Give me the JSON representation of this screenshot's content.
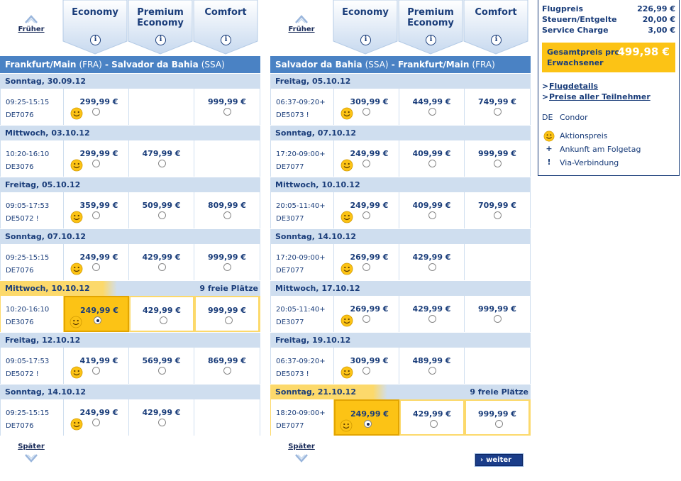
{
  "colors": {
    "accent": "#4a82c4",
    "highlight": "#fcc315",
    "day_bg": "#cfdeef",
    "text": "#1a3d7a",
    "button": "#1a3d8a"
  },
  "nav": {
    "earlier": "Früher",
    "later": "Später"
  },
  "fares": [
    {
      "label": "Economy",
      "info": "i"
    },
    {
      "label": "Premium Economy",
      "info": "i"
    },
    {
      "label": "Comfort",
      "info": "i"
    }
  ],
  "outbound": {
    "route": {
      "from": "Frankfurt/Main",
      "from_code": "(FRA)",
      "sep": " - ",
      "to": "Salvador da Bahia",
      "to_code": "(SSA)"
    },
    "days": [
      {
        "date": "Sonntag, 30.09.12",
        "seats": "",
        "selected": false,
        "times": "09:25-15:15",
        "flight": "DE7076",
        "prices": [
          "299,99 €",
          "",
          "999,99 €"
        ],
        "smiley": true
      },
      {
        "date": "Mittwoch, 03.10.12",
        "seats": "",
        "selected": false,
        "times": "10:20-16:10",
        "flight": "DE3076",
        "prices": [
          "299,99 €",
          "479,99 €",
          ""
        ],
        "smiley": true
      },
      {
        "date": "Freitag, 05.10.12",
        "seats": "",
        "selected": false,
        "times": "09:05-17:53",
        "flight": "DE5072 !",
        "prices": [
          "359,99 €",
          "509,99 €",
          "809,99 €"
        ],
        "smiley": true
      },
      {
        "date": "Sonntag, 07.10.12",
        "seats": "",
        "selected": false,
        "times": "09:25-15:15",
        "flight": "DE7076",
        "prices": [
          "249,99 €",
          "429,99 €",
          "999,99 €"
        ],
        "smiley": true
      },
      {
        "date": "Mittwoch, 10.10.12",
        "seats": "9 freie Plätze",
        "selected": true,
        "times": "10:20-16:10",
        "flight": "DE3076",
        "prices": [
          "249,99 €",
          "429,99 €",
          "999,99 €"
        ],
        "smiley": true
      },
      {
        "date": "Freitag, 12.10.12",
        "seats": "",
        "selected": false,
        "times": "09:05-17:53",
        "flight": "DE5072 !",
        "prices": [
          "419,99 €",
          "569,99 €",
          "869,99 €"
        ],
        "smiley": true
      },
      {
        "date": "Sonntag, 14.10.12",
        "seats": "",
        "selected": false,
        "times": "09:25-15:15",
        "flight": "DE7076",
        "prices": [
          "249,99 €",
          "429,99 €",
          ""
        ],
        "smiley": true
      }
    ]
  },
  "return": {
    "route": {
      "from": "Salvador da Bahia",
      "from_code": "(SSA)",
      "sep": " - ",
      "to": "Frankfurt/Main",
      "to_code": "(FRA)"
    },
    "days": [
      {
        "date": "Freitag, 05.10.12",
        "seats": "",
        "selected": false,
        "times": "06:37-09:20+",
        "flight": "DE5073 !",
        "prices": [
          "309,99 €",
          "449,99 €",
          "749,99 €"
        ],
        "smiley": true
      },
      {
        "date": "Sonntag, 07.10.12",
        "seats": "",
        "selected": false,
        "times": "17:20-09:00+",
        "flight": "DE7077",
        "prices": [
          "249,99 €",
          "409,99 €",
          "999,99 €"
        ],
        "smiley": true
      },
      {
        "date": "Mittwoch, 10.10.12",
        "seats": "",
        "selected": false,
        "times": "20:05-11:40+",
        "flight": "DE3077",
        "prices": [
          "249,99 €",
          "409,99 €",
          "709,99 €"
        ],
        "smiley": true
      },
      {
        "date": "Sonntag, 14.10.12",
        "seats": "",
        "selected": false,
        "times": "17:20-09:00+",
        "flight": "DE7077",
        "prices": [
          "269,99 €",
          "429,99 €",
          ""
        ],
        "smiley": true
      },
      {
        "date": "Mittwoch, 17.10.12",
        "seats": "",
        "selected": false,
        "times": "20:05-11:40+",
        "flight": "DE3077",
        "prices": [
          "269,99 €",
          "429,99 €",
          "999,99 €"
        ],
        "smiley": true
      },
      {
        "date": "Freitag, 19.10.12",
        "seats": "",
        "selected": false,
        "times": "06:37-09:20+",
        "flight": "DE5073 !",
        "prices": [
          "309,99 €",
          "489,99 €",
          ""
        ],
        "smiley": true
      },
      {
        "date": "Sonntag, 21.10.12",
        "seats": "9 freie Plätze",
        "selected": true,
        "times": "18:20-09:00+",
        "flight": "DE7077",
        "prices": [
          "249,99 €",
          "429,99 €",
          "999,99 €"
        ],
        "smiley": true
      }
    ]
  },
  "continue_button": {
    "chevron": "›",
    "label": "weiter"
  },
  "summary": {
    "lines": [
      {
        "label": "Flugpreis",
        "amount": "226,99 €"
      },
      {
        "label": "Steuern/Entgelte",
        "amount": "20,00 €"
      },
      {
        "label": "Service Charge",
        "amount": "3,00 €"
      }
    ],
    "total_label": "Gesamtpreis pro Erwachsener",
    "total_amount": "499,98 €",
    "links": [
      {
        "chevron": ">",
        "label": "Flugdetails"
      },
      {
        "chevron": ">",
        "label": "Preise aller Teilnehmer"
      }
    ],
    "carrier": {
      "code": "DE",
      "name": "Condor"
    },
    "legend": [
      {
        "icon": "smiley-icon",
        "symbol": "",
        "text": "Aktionspreis"
      },
      {
        "icon": "plus-icon",
        "symbol": "+",
        "text": "Ankunft am Folgetag"
      },
      {
        "icon": "exclamation-icon",
        "symbol": "!",
        "text": "Via-Verbindung"
      }
    ]
  }
}
